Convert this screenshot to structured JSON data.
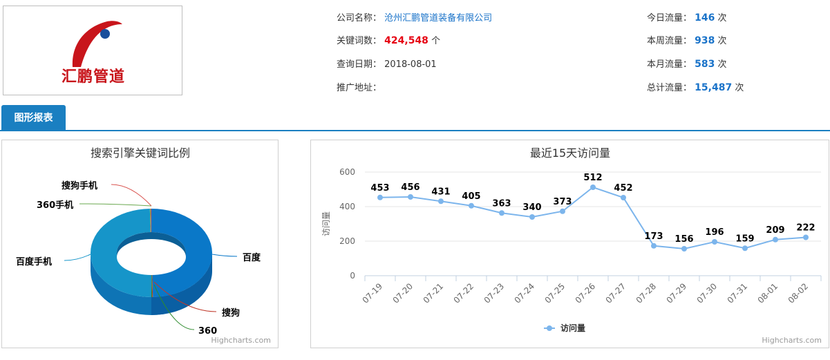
{
  "company": {
    "logo_text": "汇鹏管道",
    "name_label": "公司名称：",
    "name": "沧州汇鹏管道装备有限公司",
    "keywords_label": "关键词数：",
    "keywords": "424,548",
    "keywords_unit": "个",
    "date_label": "查询日期：",
    "date": "2018-08-01",
    "url_label": "推广地址："
  },
  "traffic": {
    "today_label": "今日流量：",
    "today": "146",
    "unit": "次",
    "week_label": "本周流量：",
    "week": "938",
    "month_label": "本月流量：",
    "month": "583",
    "total_label": "总计流量：",
    "total": "15,487"
  },
  "tabs": {
    "active": "图形报表"
  },
  "credits": "Highcharts.com",
  "colors": {
    "accent": "#1a7fc1",
    "line": "#7cb5ec",
    "red": "#e60012"
  },
  "chart_data": [
    {
      "type": "pie",
      "title": "搜索引擎关键词比例",
      "categories": [
        "百度",
        "搜狗",
        "360",
        "百度手机",
        "360手机",
        "搜狗手机"
      ],
      "values": [
        49.6,
        0.2,
        0.2,
        49.6,
        0.2,
        0.2
      ],
      "legend": "none"
    },
    {
      "type": "line",
      "title": "最近15天访问量",
      "categories": [
        "07-19",
        "07-20",
        "07-21",
        "07-22",
        "07-23",
        "07-24",
        "07-25",
        "07-26",
        "07-27",
        "07-28",
        "07-29",
        "07-30",
        "07-31",
        "08-01",
        "08-02"
      ],
      "series": [
        {
          "name": "访问量",
          "values": [
            453,
            456,
            431,
            405,
            363,
            340,
            373,
            512,
            452,
            173,
            156,
            196,
            159,
            209,
            222
          ]
        }
      ],
      "ylabel": "访问量",
      "ylim": [
        0,
        600
      ],
      "yticks": [
        0,
        200,
        400,
        600
      ],
      "grid": true,
      "legend": "bottom"
    }
  ]
}
